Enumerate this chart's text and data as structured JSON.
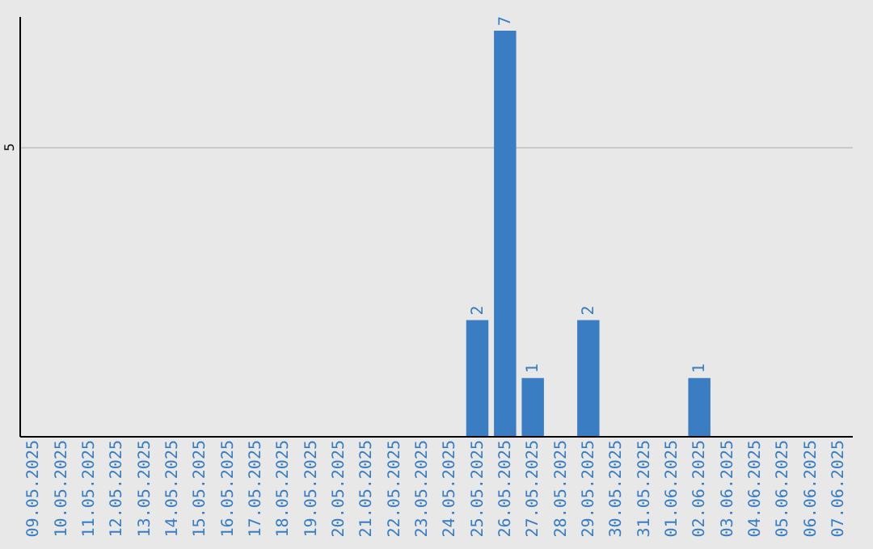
{
  "chart_data": {
    "type": "bar",
    "categories": [
      "09.05.2025",
      "10.05.2025",
      "11.05.2025",
      "12.05.2025",
      "13.05.2025",
      "14.05.2025",
      "15.05.2025",
      "16.05.2025",
      "17.05.2025",
      "18.05.2025",
      "19.05.2025",
      "20.05.2025",
      "21.05.2025",
      "22.05.2025",
      "23.05.2025",
      "24.05.2025",
      "25.05.2025",
      "26.05.2025",
      "27.05.2025",
      "28.05.2025",
      "29.05.2025",
      "30.05.2025",
      "31.05.2025",
      "01.06.2025",
      "02.06.2025",
      "03.06.2025",
      "04.06.2025",
      "05.06.2025",
      "06.06.2025",
      "07.06.2025"
    ],
    "values": [
      null,
      null,
      null,
      null,
      null,
      null,
      null,
      null,
      null,
      null,
      null,
      null,
      null,
      null,
      null,
      null,
      2,
      7,
      1,
      null,
      2,
      null,
      null,
      null,
      1,
      null,
      null,
      null,
      null,
      null
    ],
    "color": "#3a7dc2",
    "ylim": [
      0,
      7.25
    ],
    "yticks": [
      5
    ],
    "grid": "y",
    "data_labels": true
  }
}
